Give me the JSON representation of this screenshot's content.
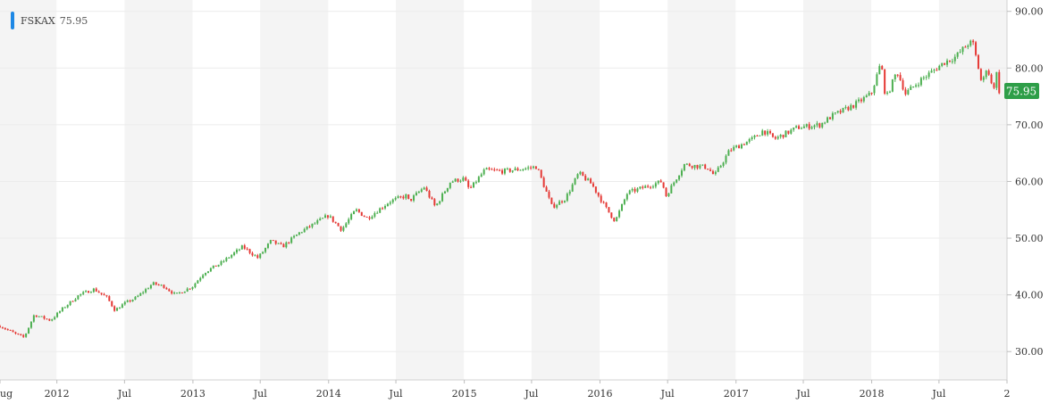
{
  "legend": {
    "symbol": "FSKAX",
    "value": "75.95",
    "marker_color": "#1e88e5"
  },
  "chart_data": {
    "type": "candlestick",
    "series_name": "FSKAX",
    "last_value": 75.95,
    "last_label": "75.95",
    "ylim": [
      25,
      92
    ],
    "y_ticks": [
      30,
      40,
      50,
      60,
      70,
      80,
      90
    ],
    "y_tick_labels": [
      "30.00",
      "40.00",
      "50.00",
      "60.00",
      "70.00",
      "80.00",
      "90.00"
    ],
    "xlim": [
      "2011-08-01",
      "2018-12-31"
    ],
    "x_ticks": [
      {
        "date": "2011-08-01",
        "label": "ug"
      },
      {
        "date": "2012-01-01",
        "label": "2012"
      },
      {
        "date": "2012-07-01",
        "label": "Jul"
      },
      {
        "date": "2013-01-01",
        "label": "2013"
      },
      {
        "date": "2013-07-01",
        "label": "Jul"
      },
      {
        "date": "2014-01-01",
        "label": "2014"
      },
      {
        "date": "2014-07-01",
        "label": "Jul"
      },
      {
        "date": "2015-01-01",
        "label": "2015"
      },
      {
        "date": "2015-07-01",
        "label": "Jul"
      },
      {
        "date": "2016-01-01",
        "label": "2016"
      },
      {
        "date": "2016-07-01",
        "label": "Jul"
      },
      {
        "date": "2017-01-01",
        "label": "2017"
      },
      {
        "date": "2017-07-01",
        "label": "Jul"
      },
      {
        "date": "2018-01-01",
        "label": "2018"
      },
      {
        "date": "2018-07-01",
        "label": "Jul"
      },
      {
        "date": "2018-12-31",
        "label": "2"
      }
    ],
    "shaded_bands": [
      [
        "2011-08-01",
        "2011-12-31"
      ],
      [
        "2012-07-01",
        "2012-12-31"
      ],
      [
        "2013-07-01",
        "2013-12-31"
      ],
      [
        "2014-07-01",
        "2014-12-31"
      ],
      [
        "2015-07-01",
        "2015-12-31"
      ],
      [
        "2016-07-01",
        "2016-12-31"
      ],
      [
        "2017-07-01",
        "2017-12-31"
      ],
      [
        "2018-07-01",
        "2018-12-31"
      ]
    ],
    "grid": true,
    "up_color": "#4caf50",
    "down_color": "#e53935",
    "band_color": "#f4f4f4",
    "last_badge_color": "#2e9e48",
    "close_path": [
      [
        "2011-08-01",
        34.5
      ],
      [
        "2011-09-15",
        33.0
      ],
      [
        "2011-10-05",
        32.5
      ],
      [
        "2011-11-01",
        36.5
      ],
      [
        "2011-12-15",
        35.5
      ],
      [
        "2012-01-15",
        37.5
      ],
      [
        "2012-03-01",
        40.0
      ],
      [
        "2012-04-10",
        41.0
      ],
      [
        "2012-05-15",
        39.5
      ],
      [
        "2012-06-05",
        37.3
      ],
      [
        "2012-07-01",
        38.5
      ],
      [
        "2012-08-01",
        39.5
      ],
      [
        "2012-09-15",
        42.0
      ],
      [
        "2012-10-15",
        41.5
      ],
      [
        "2012-11-15",
        40.0
      ],
      [
        "2012-12-31",
        41.5
      ],
      [
        "2013-02-01",
        44.0
      ],
      [
        "2013-03-15",
        45.5
      ],
      [
        "2013-05-15",
        48.5
      ],
      [
        "2013-06-25",
        46.5
      ],
      [
        "2013-07-30",
        49.5
      ],
      [
        "2013-08-30",
        48.5
      ],
      [
        "2013-10-15",
        51.0
      ],
      [
        "2013-12-31",
        54.0
      ],
      [
        "2014-02-05",
        51.5
      ],
      [
        "2014-03-15",
        55.0
      ],
      [
        "2014-04-15",
        53.5
      ],
      [
        "2014-06-15",
        56.5
      ],
      [
        "2014-07-30",
        57.5
      ],
      [
        "2014-08-05",
        56.5
      ],
      [
        "2014-09-15",
        59.0
      ],
      [
        "2014-10-15",
        55.5
      ],
      [
        "2014-11-25",
        60.0
      ],
      [
        "2014-12-31",
        60.5
      ],
      [
        "2015-01-15",
        58.5
      ],
      [
        "2015-02-25",
        62.0
      ],
      [
        "2015-04-15",
        61.8
      ],
      [
        "2015-06-15",
        62.3
      ],
      [
        "2015-07-15",
        62.6
      ],
      [
        "2015-08-25",
        55.5
      ],
      [
        "2015-09-30",
        57.0
      ],
      [
        "2015-11-05",
        61.5
      ],
      [
        "2015-12-10",
        59.5
      ],
      [
        "2016-01-20",
        55.0
      ],
      [
        "2016-02-11",
        53.0
      ],
      [
        "2016-03-15",
        58.0
      ],
      [
        "2016-06-15",
        60.0
      ],
      [
        "2016-06-27",
        57.5
      ],
      [
        "2016-08-15",
        63.0
      ],
      [
        "2016-10-15",
        62.5
      ],
      [
        "2016-11-04",
        61.0
      ],
      [
        "2016-12-15",
        65.5
      ],
      [
        "2017-02-15",
        67.5
      ],
      [
        "2017-03-15",
        69.0
      ],
      [
        "2017-04-15",
        67.5
      ],
      [
        "2017-06-15",
        69.5
      ],
      [
        "2017-08-15",
        70.0
      ],
      [
        "2017-09-15",
        71.5
      ],
      [
        "2017-11-15",
        73.5
      ],
      [
        "2017-12-31",
        75.5
      ],
      [
        "2018-01-26",
        81.0
      ],
      [
        "2018-02-08",
        74.5
      ],
      [
        "2018-03-10",
        79.5
      ],
      [
        "2018-04-02",
        75.5
      ],
      [
        "2018-05-15",
        78.0
      ],
      [
        "2018-06-15",
        79.5
      ],
      [
        "2018-07-15",
        81.0
      ],
      [
        "2018-08-15",
        82.0
      ],
      [
        "2018-09-20",
        84.5
      ],
      [
        "2018-10-01",
        84.2
      ],
      [
        "2018-10-25",
        77.0
      ],
      [
        "2018-11-07",
        80.5
      ],
      [
        "2018-11-23",
        76.0
      ],
      [
        "2018-12-03",
        79.0
      ],
      [
        "2018-12-10",
        75.95
      ]
    ]
  }
}
